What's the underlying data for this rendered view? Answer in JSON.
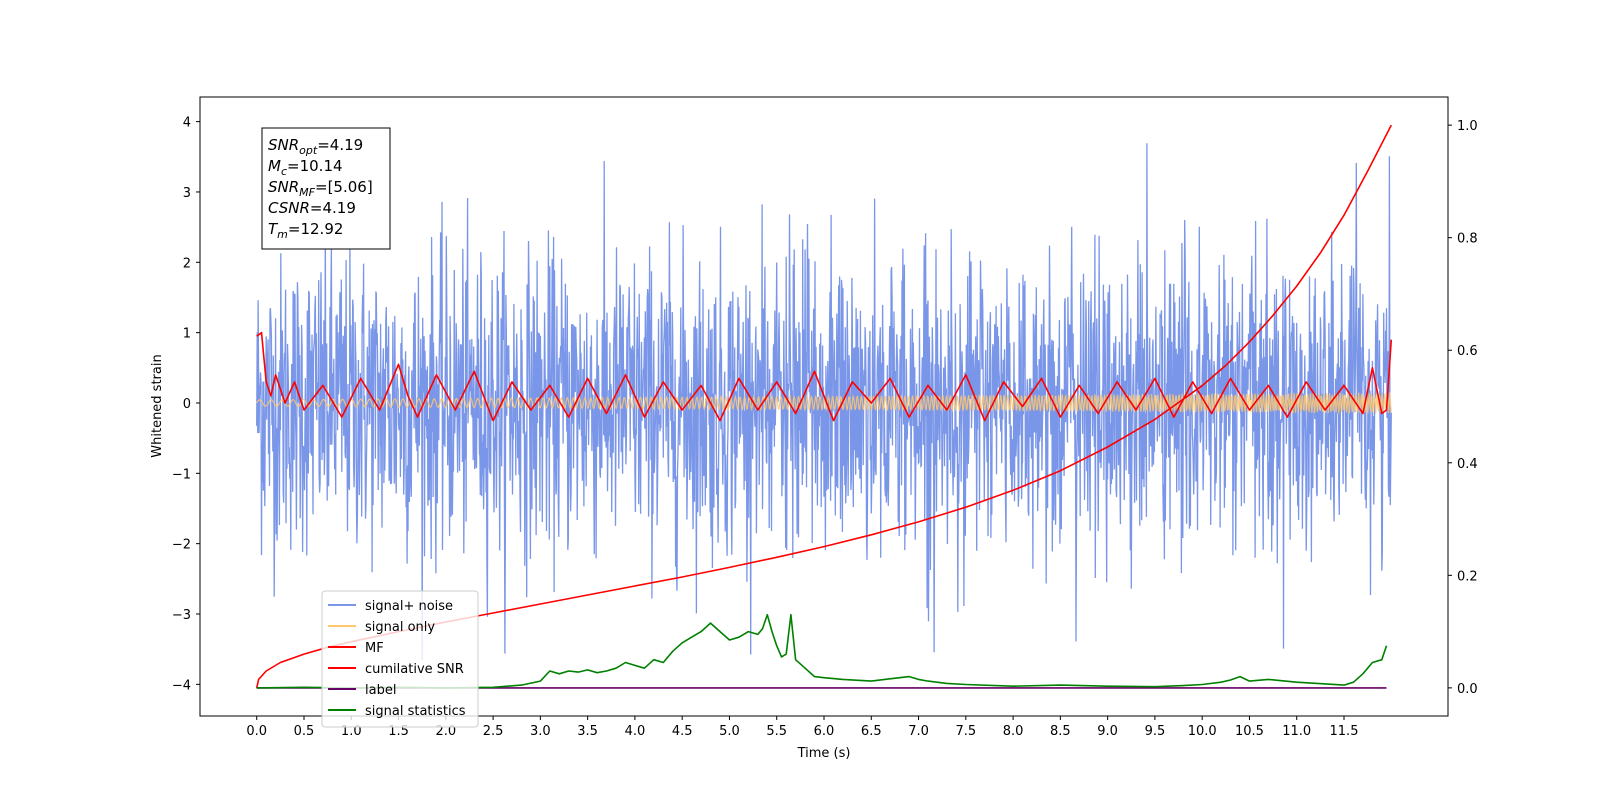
{
  "chart_data": {
    "type": "line",
    "title": "",
    "xlabel": "Time (s)",
    "ylabel": "Whitened strain",
    "y2label": "",
    "xlim": [
      -0.6,
      12.6
    ],
    "ylim": [
      -4.45,
      4.35
    ],
    "y2lim": [
      -0.05,
      1.05
    ],
    "xticks": [
      "0.0",
      "0.5",
      "1.0",
      "1.5",
      "2.0",
      "2.5",
      "3.0",
      "3.5",
      "4.0",
      "4.5",
      "5.0",
      "5.5",
      "6.0",
      "6.5",
      "7.0",
      "7.5",
      "8.0",
      "8.5",
      "9.0",
      "9.5",
      "10.0",
      "10.5",
      "11.0",
      "11.5"
    ],
    "yticks": [
      "4",
      "3",
      "2",
      "1",
      "0",
      "−1",
      "−2",
      "−3",
      "−4"
    ],
    "y2ticks": [
      "1.0",
      "0.8",
      "0.6",
      "0.4",
      "0.2",
      "0.0"
    ],
    "grid": false,
    "legend_position": "lower-left",
    "annotation": [
      {
        "sym": "SNR",
        "sub": "opt",
        "val": "=4.19"
      },
      {
        "sym": "M",
        "sub": "c",
        "val": "=10.14"
      },
      {
        "sym": "SNR",
        "sub": "MF",
        "val": "=[5.06]"
      },
      {
        "sym": "CSNR",
        "sub": "",
        "val": "=4.19"
      },
      {
        "sym": "T",
        "sub": "m",
        "val": "=12.92"
      }
    ],
    "series": [
      {
        "name": "signal+ noise",
        "color": "#7a96e8",
        "axis": "left",
        "style": "noise",
        "x_range": [
          0,
          12.0
        ],
        "center": 0.0,
        "amplitude_range": [
          -3.7,
          3.95
        ]
      },
      {
        "name": "signal only",
        "color": "#ffc76e",
        "axis": "left",
        "style": "chirp",
        "x_range": [
          0,
          12.0
        ],
        "amplitude_range": [
          -0.15,
          0.15
        ]
      },
      {
        "name": "MF",
        "color": "#ff0000",
        "axis": "left",
        "x": [
          0.0,
          0.05,
          0.1,
          0.15,
          0.2,
          0.3,
          0.4,
          0.5,
          0.7,
          0.9,
          1.1,
          1.3,
          1.5,
          1.6,
          1.7,
          1.9,
          2.1,
          2.3,
          2.5,
          2.7,
          2.9,
          3.1,
          3.3,
          3.5,
          3.7,
          3.9,
          4.1,
          4.3,
          4.5,
          4.7,
          4.9,
          5.1,
          5.3,
          5.5,
          5.7,
          5.9,
          6.1,
          6.3,
          6.5,
          6.7,
          6.9,
          7.1,
          7.3,
          7.5,
          7.7,
          7.9,
          8.1,
          8.3,
          8.5,
          8.7,
          8.9,
          9.1,
          9.3,
          9.5,
          9.7,
          9.9,
          10.1,
          10.3,
          10.5,
          10.7,
          10.9,
          11.1,
          11.3,
          11.5,
          11.7,
          11.8,
          11.9,
          11.95,
          12.0
        ],
        "y": [
          0.95,
          1.0,
          0.3,
          0.1,
          0.4,
          0.0,
          0.3,
          -0.1,
          0.25,
          -0.2,
          0.35,
          -0.1,
          0.55,
          0.1,
          -0.2,
          0.4,
          -0.1,
          0.45,
          -0.25,
          0.3,
          -0.1,
          0.25,
          -0.2,
          0.35,
          -0.15,
          0.4,
          -0.2,
          0.3,
          -0.1,
          0.25,
          -0.25,
          0.35,
          -0.1,
          0.3,
          -0.15,
          0.45,
          -0.25,
          0.3,
          0.0,
          0.35,
          -0.2,
          0.25,
          -0.1,
          0.4,
          -0.25,
          0.3,
          -0.05,
          0.35,
          -0.2,
          0.25,
          -0.15,
          0.3,
          -0.1,
          0.35,
          -0.2,
          0.3,
          -0.15,
          0.35,
          -0.1,
          0.25,
          -0.2,
          0.3,
          -0.1,
          0.25,
          -0.15,
          0.5,
          -0.15,
          -0.1,
          0.9
        ]
      },
      {
        "name": "cumilative SNR",
        "color": "#ff0000",
        "axis": "right",
        "x": [
          0.0,
          0.02,
          0.1,
          0.25,
          0.5,
          0.75,
          1.0,
          1.5,
          2.0,
          2.5,
          3.0,
          3.5,
          4.0,
          4.5,
          5.0,
          5.5,
          6.0,
          6.5,
          7.0,
          7.5,
          8.0,
          8.5,
          9.0,
          9.5,
          10.0,
          10.25,
          10.5,
          10.75,
          11.0,
          11.25,
          11.5,
          11.75,
          12.0
        ],
        "y": [
          0.0,
          0.015,
          0.03,
          0.045,
          0.06,
          0.072,
          0.082,
          0.1,
          0.117,
          0.133,
          0.149,
          0.165,
          0.181,
          0.197,
          0.214,
          0.232,
          0.251,
          0.272,
          0.295,
          0.321,
          0.351,
          0.386,
          0.428,
          0.477,
          0.537,
          0.573,
          0.615,
          0.662,
          0.714,
          0.773,
          0.84,
          0.918,
          1.0
        ]
      },
      {
        "name": "label",
        "color": "#660066",
        "axis": "right",
        "x": [
          0.0,
          11.95
        ],
        "y": [
          0.0,
          0.0
        ]
      },
      {
        "name": "signal statistics",
        "color": "#008000",
        "axis": "right",
        "x": [
          0.0,
          0.5,
          1.0,
          1.5,
          2.0,
          2.5,
          2.8,
          3.0,
          3.1,
          3.2,
          3.3,
          3.4,
          3.5,
          3.6,
          3.7,
          3.8,
          3.9,
          4.0,
          4.1,
          4.2,
          4.3,
          4.4,
          4.5,
          4.6,
          4.7,
          4.8,
          4.9,
          5.0,
          5.1,
          5.2,
          5.3,
          5.35,
          5.4,
          5.45,
          5.5,
          5.55,
          5.6,
          5.65,
          5.7,
          5.8,
          5.9,
          6.0,
          6.2,
          6.5,
          6.8,
          6.9,
          7.0,
          7.1,
          7.3,
          7.5,
          8.0,
          8.5,
          9.0,
          9.5,
          9.8,
          10.0,
          10.2,
          10.3,
          10.4,
          10.5,
          10.7,
          11.0,
          11.5,
          11.6,
          11.7,
          11.8,
          11.9,
          11.95
        ],
        "y": [
          0.0,
          0.001,
          0.0,
          0.001,
          0.0,
          0.001,
          0.005,
          0.012,
          0.03,
          0.025,
          0.03,
          0.028,
          0.032,
          0.027,
          0.03,
          0.035,
          0.045,
          0.04,
          0.035,
          0.05,
          0.045,
          0.065,
          0.08,
          0.09,
          0.1,
          0.115,
          0.1,
          0.085,
          0.09,
          0.1,
          0.095,
          0.105,
          0.13,
          0.1,
          0.075,
          0.055,
          0.06,
          0.13,
          0.05,
          0.035,
          0.02,
          0.018,
          0.015,
          0.012,
          0.018,
          0.02,
          0.015,
          0.012,
          0.008,
          0.006,
          0.003,
          0.005,
          0.003,
          0.002,
          0.004,
          0.006,
          0.01,
          0.014,
          0.02,
          0.012,
          0.015,
          0.01,
          0.005,
          0.01,
          0.025,
          0.045,
          0.05,
          0.075
        ]
      }
    ]
  }
}
